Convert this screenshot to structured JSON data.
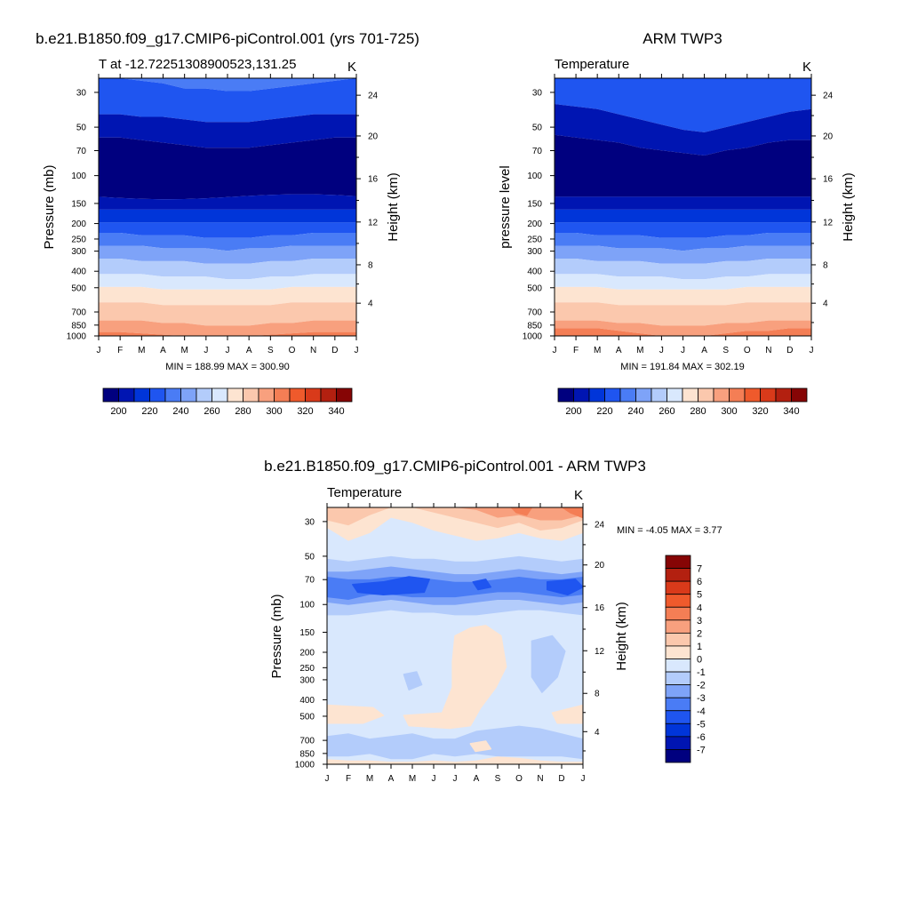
{
  "months": [
    "J",
    "F",
    "M",
    "A",
    "M",
    "J",
    "J",
    "A",
    "S",
    "O",
    "N",
    "D",
    "J"
  ],
  "pressure_ticks": [
    "30",
    "50",
    "70",
    "100",
    "150",
    "200",
    "250",
    "300",
    "400",
    "500",
    "700",
    "850",
    "1000"
  ],
  "height_ticks": [
    "24",
    "20",
    "16",
    "12",
    "8",
    "4"
  ],
  "temperature_colorbar": {
    "labels": [
      "200",
      "220",
      "240",
      "260",
      "280",
      "300",
      "320",
      "340"
    ],
    "colors": [
      "#00007f",
      "#0015b2",
      "#0035d9",
      "#1f55f0",
      "#4a7cf5",
      "#7ea3f8",
      "#b3ccfb",
      "#d9e8fd",
      "#fde4d1",
      "#fbc8ad",
      "#f8a07e",
      "#f47e55",
      "#ef5a2c",
      "#d93a1a",
      "#b32010",
      "#860505"
    ]
  },
  "diff_colorbar": {
    "labels": [
      "7",
      "6",
      "5",
      "4",
      "3",
      "2",
      "1",
      "0",
      "-1",
      "-2",
      "-3",
      "-4",
      "-5",
      "-6",
      "-7"
    ],
    "colors": [
      "#860505",
      "#b32010",
      "#d93a1a",
      "#ef5a2c",
      "#f47e55",
      "#f8a07e",
      "#fbc8ad",
      "#fde4d1",
      "#d9e8fd",
      "#b3ccfb",
      "#7ea3f8",
      "#4a7cf5",
      "#1f55f0",
      "#0035d9",
      "#0015b2",
      "#00007f"
    ]
  },
  "panel_model": {
    "title": "b.e21.B1850.f09_g17.CMIP6-piControl.001 (yrs 701-725)",
    "left_string": "T at -12.72251308900523,131.25",
    "right_string": "K",
    "ylabel_left": "Pressure (mb)",
    "ylabel_right": "Height (km)",
    "stats": "MIN = 188.99 MAX = 300.90"
  },
  "panel_obs": {
    "title": "ARM TWP3",
    "left_string": "Temperature",
    "right_string": "K",
    "ylabel_left": "pressure level",
    "ylabel_right": "Height (km)",
    "stats": "MIN = 191.84 MAX = 302.19"
  },
  "panel_diff": {
    "title": "b.e21.B1850.f09_g17.CMIP6-piControl.001 - ARM TWP3",
    "left_string": "Temperature",
    "right_string": "K",
    "ylabel_left": "Pressure (mb)",
    "ylabel_right": "Height (km)",
    "stats": "MIN =  -4.05 MAX =   3.77"
  },
  "chart_data": [
    {
      "type": "heatmap",
      "title": "b.e21.B1850.f09_g17.CMIP6-piControl.001 (yrs 701-725)",
      "subtitle": "T at -12.72251308900523,131.25",
      "units": "K",
      "xlabel": "",
      "ylabel": "Pressure (mb)",
      "ylabel_right": "Height (km)",
      "x": [
        "J",
        "F",
        "M",
        "A",
        "M",
        "J",
        "J",
        "A",
        "S",
        "O",
        "N",
        "D",
        "J"
      ],
      "y_pressure_levels": [
        30,
        50,
        70,
        100,
        150,
        200,
        250,
        300,
        400,
        500,
        700,
        850,
        1000
      ],
      "ylim": [
        1000,
        25
      ],
      "y_scale": "log",
      "min": 188.99,
      "max": 300.9,
      "contour_levels": [
        195,
        200,
        205,
        210,
        215,
        220,
        225,
        230,
        235,
        240,
        245,
        250,
        255,
        260,
        265,
        270,
        275,
        280,
        285,
        290,
        295,
        300,
        305,
        310,
        315,
        320,
        325,
        330,
        335,
        340,
        345
      ],
      "approx_profile_K": {
        "30": 225,
        "50": 208,
        "70": 194,
        "100": 193,
        "150": 205,
        "200": 218,
        "250": 228,
        "300": 238,
        "400": 251,
        "500": 263,
        "700": 278,
        "850": 288,
        "1000": 299
      }
    },
    {
      "type": "heatmap",
      "title": "ARM TWP3",
      "subtitle": "Temperature",
      "units": "K",
      "xlabel": "",
      "ylabel": "pressure level",
      "ylabel_right": "Height (km)",
      "x": [
        "J",
        "F",
        "M",
        "A",
        "M",
        "J",
        "J",
        "A",
        "S",
        "O",
        "N",
        "D",
        "J"
      ],
      "y_pressure_levels": [
        30,
        50,
        70,
        100,
        150,
        200,
        250,
        300,
        400,
        500,
        700,
        850,
        1000
      ],
      "ylim": [
        1000,
        25
      ],
      "y_scale": "log",
      "min": 191.84,
      "max": 302.19,
      "approx_profile_K": {
        "30": 223,
        "50": 207,
        "70": 196,
        "100": 195,
        "150": 206,
        "200": 219,
        "250": 229,
        "300": 239,
        "400": 252,
        "500": 264,
        "700": 279,
        "850": 289,
        "1000": 300
      }
    },
    {
      "type": "heatmap",
      "title": "b.e21.B1850.f09_g17.CMIP6-piControl.001 - ARM TWP3",
      "subtitle": "Temperature",
      "units": "K",
      "xlabel": "",
      "ylabel": "Pressure (mb)",
      "ylabel_right": "Height (km)",
      "x": [
        "J",
        "F",
        "M",
        "A",
        "M",
        "J",
        "J",
        "A",
        "S",
        "O",
        "N",
        "D",
        "J"
      ],
      "y_pressure_levels": [
        30,
        50,
        70,
        100,
        150,
        200,
        250,
        300,
        400,
        500,
        700,
        850,
        1000
      ],
      "ylim": [
        1000,
        25
      ],
      "y_scale": "log",
      "min": -4.05,
      "max": 3.77,
      "contour_levels": [
        -7,
        -6,
        -5,
        -4,
        -3,
        -2,
        -1,
        0,
        1,
        2,
        3,
        4,
        5,
        6,
        7
      ],
      "approx_profile_K": {
        "30": 1.5,
        "50": -1.5,
        "70": -3.5,
        "100": -2.0,
        "150": -0.5,
        "200": -0.3,
        "250": 0.3,
        "300": -0.3,
        "400": -0.2,
        "500": 0.3,
        "700": -0.8,
        "850": -1.2,
        "1000": 0.2
      }
    }
  ]
}
